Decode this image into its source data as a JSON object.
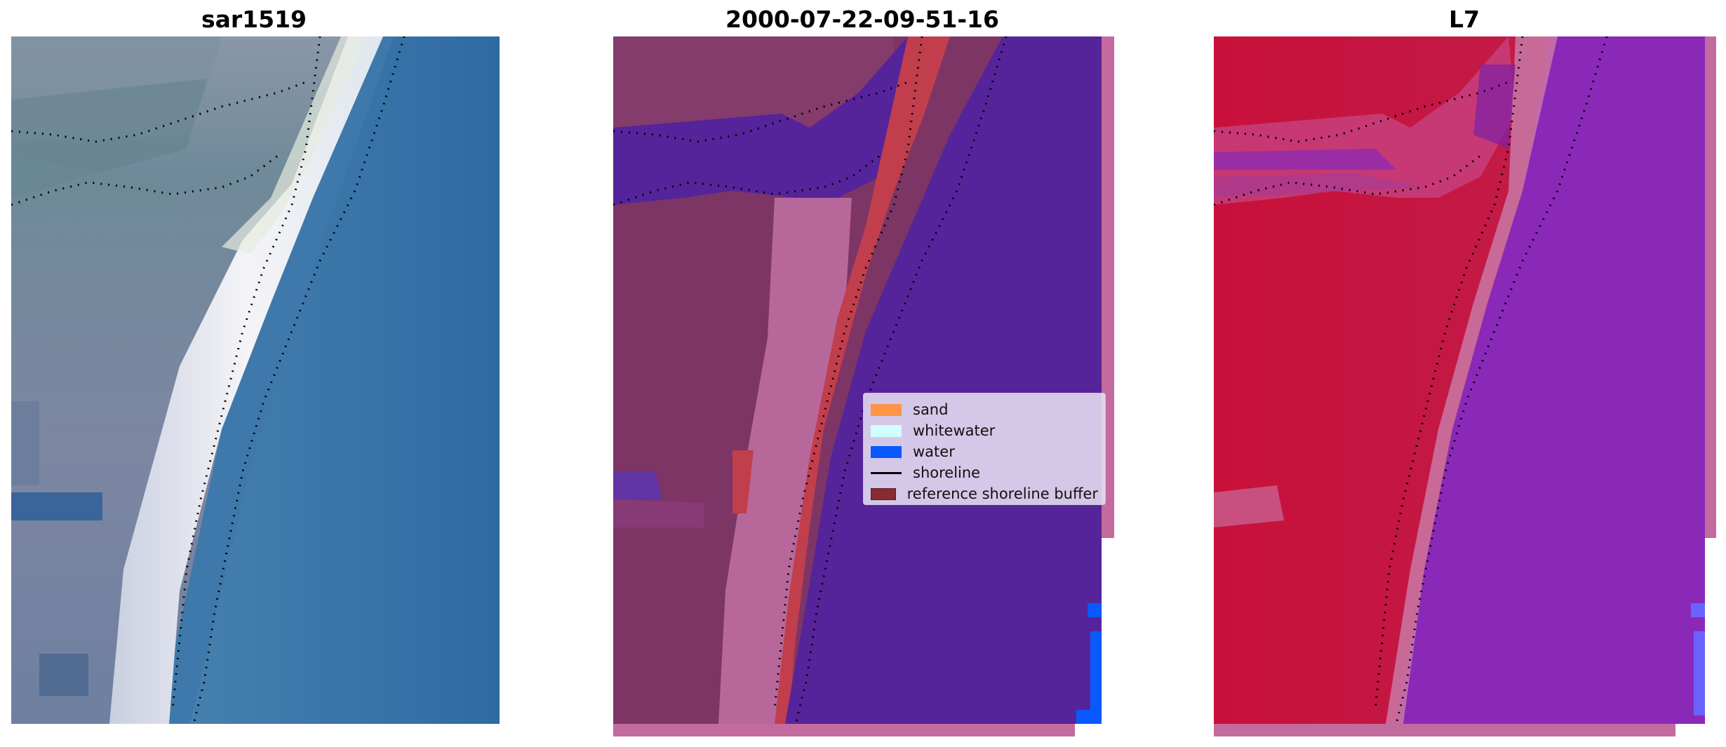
{
  "titles": {
    "left": "sar1519",
    "middle": "2000-07-22-09-51-16",
    "right": "L7"
  },
  "legend": [
    {
      "label": "sand",
      "color": "#ff9447",
      "kind": "patch"
    },
    {
      "label": "whitewater",
      "color": "#d1ffff",
      "kind": "patch"
    },
    {
      "label": "water",
      "color": "#0a59ff",
      "kind": "patch"
    },
    {
      "label": "shoreline",
      "color": "#000000",
      "kind": "line"
    },
    {
      "label": "reference shoreline buffer",
      "color": "#8a2b33",
      "kind": "patch"
    }
  ],
  "colors": {
    "rgb_water": "#3c76a8",
    "rgb_land": "#7f8fa8",
    "rgb_sand": "#eef0f3",
    "class_water_overlay": "#55249a",
    "class_land": "#7d3566",
    "class_buffer": "#c13e4c",
    "class_sand": "#b8679b",
    "index_land": "#c41640",
    "index_water": "#8a29b8",
    "edge_strip": "#c36b9e"
  }
}
